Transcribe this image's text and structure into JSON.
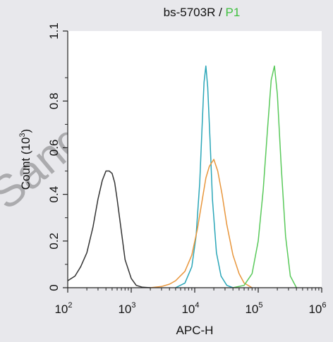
{
  "chart_data": {
    "type": "line",
    "title_part1": "bs-5703R",
    "title_sep": " / ",
    "title_part2": "P1",
    "title_part2_color": "#3fbf3f",
    "xlabel": "APC-H",
    "ylabel": "Count",
    "ylabel_unit_open": "(10",
    "ylabel_unit_exp": "3",
    "ylabel_unit_close": ")",
    "x_scale": "log",
    "xlim": [
      100,
      1000000
    ],
    "ylim": [
      0,
      1.1
    ],
    "x_ticks": [
      {
        "base": "10",
        "exp": "2",
        "value": 100
      },
      {
        "base": "10",
        "exp": "3",
        "value": 1000
      },
      {
        "base": "10",
        "exp": "4",
        "value": 10000
      },
      {
        "base": "10",
        "exp": "5",
        "value": 100000
      },
      {
        "base": "10",
        "exp": "6",
        "value": 1000000
      }
    ],
    "y_ticks": [
      "0",
      "0.2",
      "0.4",
      "0.6",
      "0.8",
      "1.1"
    ],
    "y_tick_values": [
      0,
      0.2,
      0.4,
      0.6,
      0.8,
      1.1
    ],
    "watermark": "Sangbiotech",
    "series": [
      {
        "color": "#333333",
        "x": [
          100,
          130,
          160,
          200,
          250,
          300,
          350,
          400,
          450,
          500,
          550,
          600,
          700,
          800,
          1000,
          1200,
          1500,
          2000
        ],
        "y": [
          0.03,
          0.05,
          0.09,
          0.15,
          0.26,
          0.38,
          0.46,
          0.5,
          0.5,
          0.49,
          0.45,
          0.38,
          0.24,
          0.12,
          0.04,
          0.01,
          0.002,
          0.0
        ]
      },
      {
        "color": "#2aa6b8",
        "x": [
          5000,
          7000,
          9000,
          10500,
          12000,
          13000,
          14000,
          15000,
          16000,
          17500,
          19000,
          22000,
          26000,
          32000,
          40000
        ],
        "y": [
          0.0,
          0.02,
          0.09,
          0.22,
          0.45,
          0.68,
          0.88,
          0.95,
          0.86,
          0.62,
          0.38,
          0.15,
          0.05,
          0.01,
          0.0
        ]
      },
      {
        "color": "#e8963c",
        "x": [
          2000,
          3000,
          4000,
          5000,
          7000,
          9000,
          11000,
          13000,
          15000,
          17000,
          20000,
          23000,
          27000,
          32000,
          40000,
          50000,
          60000,
          80000
        ],
        "y": [
          0.0,
          0.005,
          0.015,
          0.03,
          0.07,
          0.14,
          0.25,
          0.37,
          0.47,
          0.52,
          0.55,
          0.5,
          0.4,
          0.27,
          0.14,
          0.06,
          0.02,
          0.0
        ]
      },
      {
        "color": "#59c95a",
        "x": [
          40000,
          60000,
          80000,
          100000,
          120000,
          140000,
          160000,
          180000,
          200000,
          230000,
          270000,
          320000,
          400000
        ],
        "y": [
          0.0,
          0.01,
          0.06,
          0.2,
          0.42,
          0.68,
          0.89,
          0.95,
          0.83,
          0.52,
          0.22,
          0.05,
          0.0
        ]
      }
    ],
    "grid": false,
    "legend": "none"
  }
}
